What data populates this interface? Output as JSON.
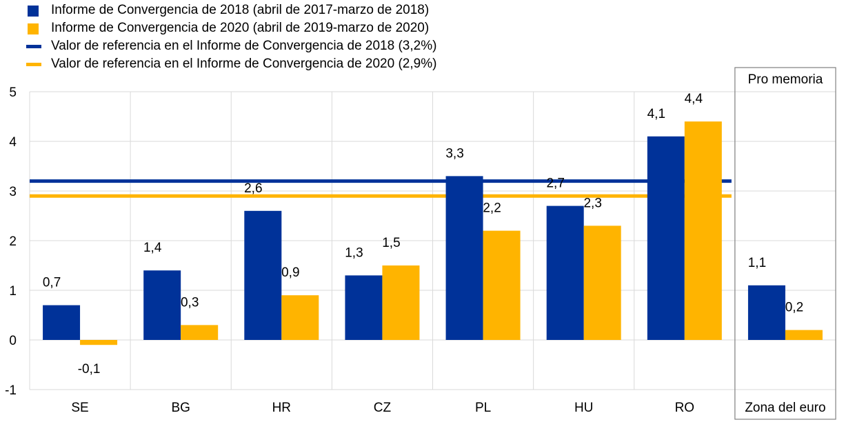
{
  "colors": {
    "series_2018": "#003299",
    "series_2020": "#ffb400",
    "grid": "#d9d9d9",
    "memo_box": "#808080"
  },
  "legend": [
    {
      "label": "Informe de Convergencia de 2018 (abril de 2017-marzo de 2018)",
      "kind": "square",
      "color": "#003299"
    },
    {
      "label": "Informe de Convergencia de 2020 (abril de 2019-marzo de 2020)",
      "kind": "square",
      "color": "#ffb400"
    },
    {
      "label": "Valor de referencia en el Informe de Convergencia de 2018 (3,2%)",
      "kind": "line",
      "color": "#003299"
    },
    {
      "label": "Valor de referencia en el Informe de Convergencia de 2020 (2,9%)",
      "kind": "line",
      "color": "#ffb400"
    }
  ],
  "memo_label": "Pro memoria",
  "chart_data": {
    "type": "bar",
    "categories": [
      "SE",
      "BG",
      "HR",
      "CZ",
      "PL",
      "HU",
      "RO",
      "Zona del euro"
    ],
    "series": [
      {
        "name": "Informe de Convergencia de 2018 (abril de 2017-marzo de 2018)",
        "color": "#003299",
        "values": [
          0.7,
          1.4,
          2.6,
          1.3,
          3.3,
          2.7,
          4.1,
          1.1
        ],
        "labels": [
          "0,7",
          "1,4",
          "2,6",
          "1,3",
          "3,3",
          "2,7",
          "4,1",
          "1,1"
        ]
      },
      {
        "name": "Informe de Convergencia de 2020 (abril de 2019-marzo de 2020)",
        "color": "#ffb400",
        "values": [
          -0.1,
          0.3,
          0.9,
          1.5,
          2.2,
          2.3,
          4.4,
          0.2
        ],
        "labels": [
          "-0,1",
          "0,3",
          "0,9",
          "1,5",
          "2,2",
          "2,3",
          "4,4",
          "0,2"
        ]
      }
    ],
    "reference_lines": [
      {
        "name": "Valor de referencia en el Informe de Convergencia de 2018 (3,2%)",
        "value": 3.2,
        "color": "#003299"
      },
      {
        "name": "Valor de referencia en el Informe de Convergencia de 2020 (2,9%)",
        "value": 2.9,
        "color": "#ffb400"
      }
    ],
    "ylim": [
      -1,
      5
    ],
    "yticks": [
      -1,
      0,
      1,
      2,
      3,
      4,
      5
    ],
    "ytick_labels": [
      "-1",
      "0",
      "1",
      "2",
      "3",
      "4",
      "5"
    ],
    "grid": true,
    "legend_position": "top-left",
    "memo_category": "Zona del euro"
  }
}
